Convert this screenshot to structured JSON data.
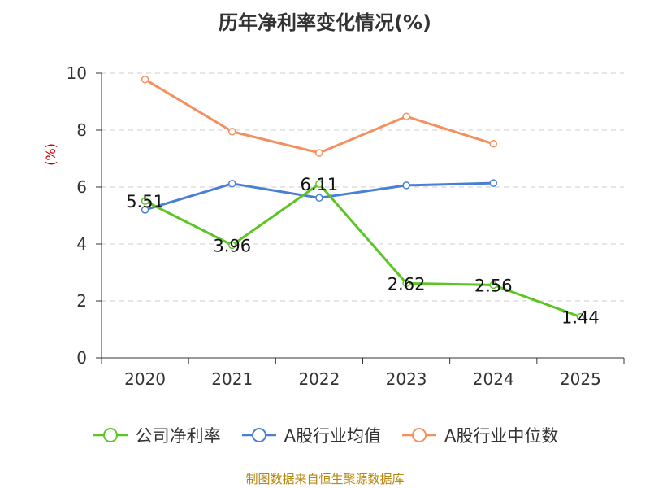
{
  "title": "历年净利率变化情况(%)",
  "source": "制图数据来自恒生聚源数据库",
  "chart_data": {
    "type": "line",
    "title": "历年净利率变化情况(%)",
    "ylabel": "(%)",
    "xlabel": "",
    "categories": [
      "2020",
      "2021",
      "2022",
      "2023",
      "2024",
      "2025"
    ],
    "ylim": [
      0,
      10
    ],
    "yticks": [
      0,
      2,
      4,
      6,
      8,
      10
    ],
    "grid": true,
    "legend_position": "bottom",
    "series": [
      {
        "name": "公司净利率",
        "color": "#5cc524",
        "values": [
          5.51,
          3.96,
          6.11,
          2.62,
          2.56,
          1.44
        ],
        "show_labels": true
      },
      {
        "name": "A股行业均值",
        "color": "#4a7fd6",
        "values": [
          5.2,
          6.12,
          5.62,
          6.06,
          6.14,
          null
        ],
        "show_labels": false
      },
      {
        "name": "A股行业中位数",
        "color": "#f4905f",
        "values": [
          9.78,
          7.95,
          7.2,
          8.48,
          7.52,
          null
        ],
        "show_labels": false
      }
    ]
  }
}
